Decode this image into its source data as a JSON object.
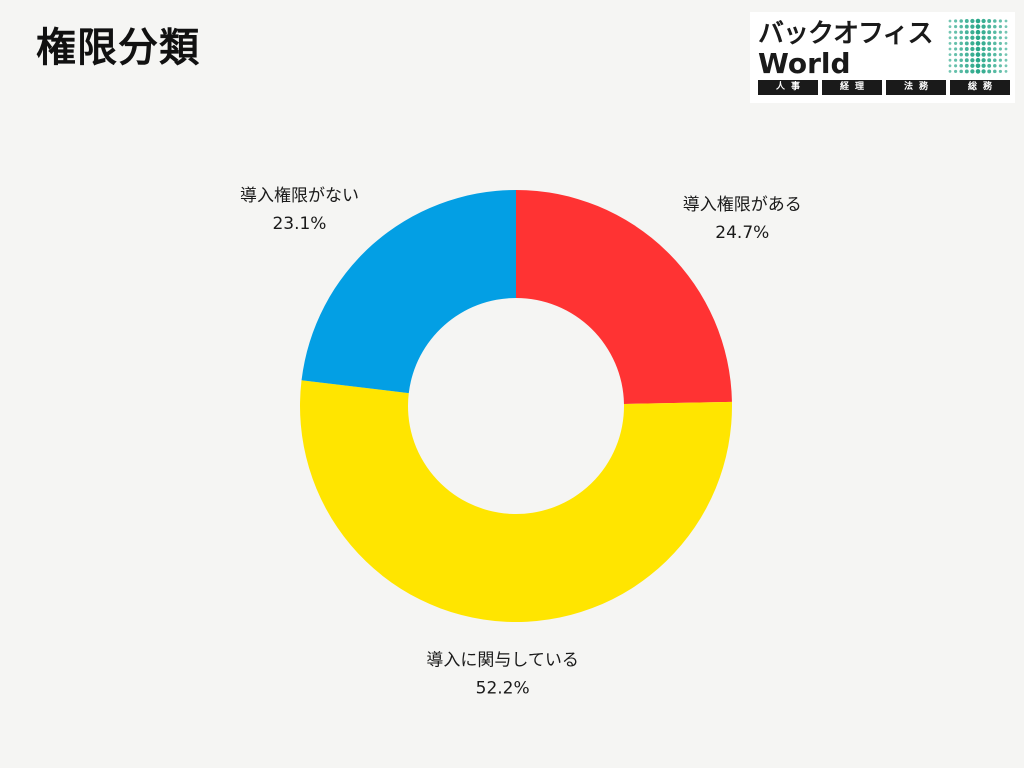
{
  "title": "権限分類",
  "logo": {
    "line1": "バックオフィス",
    "line2": "World",
    "tags": [
      "人事",
      "経理",
      "法務",
      "総務"
    ],
    "dot_color": "#2aa88a"
  },
  "chart_data": {
    "type": "pie",
    "donut": true,
    "slices": [
      {
        "label": "導入権限がある",
        "value": 24.7,
        "value_label": "24.7%",
        "color": "#ff3333"
      },
      {
        "label": "導入に関与している",
        "value": 52.2,
        "value_label": "52.2%",
        "color": "#ffe500"
      },
      {
        "label": "導入権限がない",
        "value": 23.1,
        "value_label": "23.1%",
        "color": "#039fe4"
      }
    ],
    "start": "12 o'clock",
    "direction": "clockwise",
    "labels_outside": true
  }
}
